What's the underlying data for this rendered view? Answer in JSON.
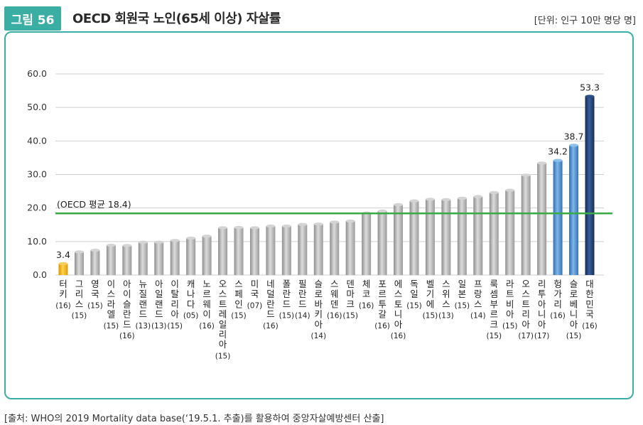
{
  "figure": {
    "badge": "그림 56",
    "title": "OECD 회원국 노인(65세 이상) 자살률",
    "unit": "[단위: 인구 10만 명당 명]",
    "source": "[출처: WHO의 2019 Mortality data base(‘19.5.1. 추출)를 활용하여 중앙자살예방센터 산출]"
  },
  "chart_data": {
    "type": "bar",
    "title": "OECD 회원국 노인(65세 이상) 자살률",
    "ylabel": "인구 10만 명당 명",
    "ylim": [
      0,
      60
    ],
    "yticks": [
      "0.0",
      "10.0",
      "20.0",
      "30.0",
      "40.0",
      "50.0",
      "60.0"
    ],
    "grid": true,
    "reference_line": {
      "label": "(OECD 평균 18.4)",
      "value": 18.4,
      "color": "#3aaa47"
    },
    "colors": {
      "default": "#b9b9b9",
      "turkey": "#f2b619",
      "highlight": "#4f8fcf",
      "korea": "#1f3f73"
    },
    "categories": [
      "터키",
      "그리스",
      "영국",
      "이스라엘",
      "아이슬란드",
      "뉴질랜드",
      "아일랜드",
      "이탈리아",
      "캐나다",
      "노르웨이",
      "오스트레일리아",
      "스페인",
      "미국",
      "네덜란드",
      "폴란드",
      "필란드",
      "슬로바키아",
      "스웨덴",
      "덴마크",
      "체코",
      "포르투갈",
      "에스토니아",
      "독일",
      "벨기에",
      "스위스",
      "일본",
      "프랑스",
      "룩셈부르크",
      "라트비아",
      "오스트리아",
      "리투아니아",
      "헝가리",
      "슬로베니아",
      "대한민국"
    ],
    "years": [
      "(16)",
      "(15)",
      "(15)",
      "(15)",
      "(16)",
      "(13)",
      "(13)",
      "(15)",
      "(05)",
      "(16)",
      "(15)",
      "(15)",
      "(07)",
      "(16)",
      "(15)",
      "(14)",
      "(14)",
      "(16)",
      "(15)",
      "(16)",
      "(16)",
      "(16)",
      "(15)",
      "(15)",
      "(13)",
      "(15)",
      "(14)",
      "(15)",
      "(15)",
      "(17)",
      "(17)",
      "(16)",
      "(15)",
      "(16)"
    ],
    "values": [
      3.4,
      6.9,
      7.4,
      8.9,
      8.8,
      9.8,
      9.8,
      10.3,
      11.0,
      11.6,
      14.1,
      14.2,
      14.1,
      14.6,
      14.6,
      15.1,
      15.2,
      15.8,
      16.1,
      18.5,
      19.1,
      21.0,
      22.1,
      22.6,
      22.5,
      22.9,
      23.4,
      24.6,
      25.3,
      29.8,
      33.4,
      34.2,
      38.7,
      53.3
    ],
    "data_labels": [
      {
        "index": 0,
        "text": "3.4"
      },
      {
        "index": 31,
        "text": "34.2"
      },
      {
        "index": 32,
        "text": "38.7"
      },
      {
        "index": 33,
        "text": "53.3"
      }
    ]
  }
}
